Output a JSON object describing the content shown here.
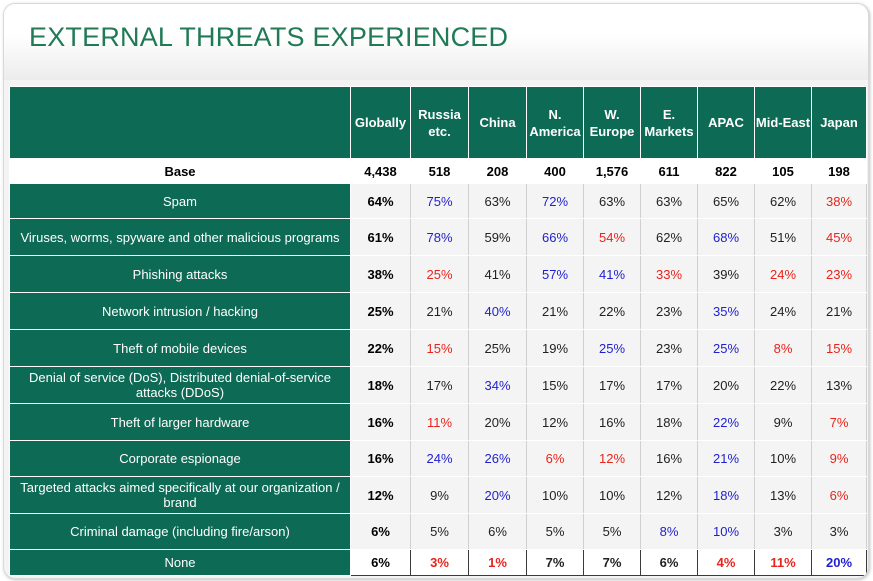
{
  "title": "EXTERNAL THREATS EXPERIENCED",
  "colors": {
    "header_green": "#0d6a54",
    "title_green": "#1f7a55",
    "red": "#e8241c",
    "blue": "#1f1fd1"
  },
  "columns": [
    "Globally",
    "Russia etc.",
    "China",
    "N. America",
    "W. Europe",
    "E. Markets",
    "APAC",
    "Mid-East",
    "Japan"
  ],
  "base": {
    "label": "Base",
    "values": [
      "4,438",
      "518",
      "208",
      "400",
      "1,576",
      "611",
      "822",
      "105",
      "198"
    ]
  },
  "rows": [
    {
      "label": "Spam",
      "values": [
        "64%",
        "75%",
        "63%",
        "72%",
        "63%",
        "63%",
        "65%",
        "62%",
        "38%"
      ],
      "colors": [
        "black",
        "blue",
        "black",
        "blue",
        "black",
        "black",
        "black",
        "black",
        "red"
      ]
    },
    {
      "label": "Viruses, worms, spyware and other malicious programs",
      "values": [
        "61%",
        "78%",
        "59%",
        "66%",
        "54%",
        "62%",
        "68%",
        "51%",
        "45%"
      ],
      "colors": [
        "black",
        "blue",
        "black",
        "blue",
        "red",
        "black",
        "blue",
        "black",
        "red"
      ]
    },
    {
      "label": "Phishing attacks",
      "values": [
        "38%",
        "25%",
        "41%",
        "57%",
        "41%",
        "33%",
        "39%",
        "24%",
        "23%"
      ],
      "colors": [
        "black",
        "red",
        "black",
        "blue",
        "blue",
        "red",
        "black",
        "red",
        "red"
      ]
    },
    {
      "label": "Network intrusion / hacking",
      "values": [
        "25%",
        "21%",
        "40%",
        "21%",
        "22%",
        "23%",
        "35%",
        "24%",
        "21%"
      ],
      "colors": [
        "black",
        "black",
        "blue",
        "black",
        "black",
        "black",
        "blue",
        "black",
        "black"
      ]
    },
    {
      "label": "Theft of mobile devices",
      "values": [
        "22%",
        "15%",
        "25%",
        "19%",
        "25%",
        "23%",
        "25%",
        "8%",
        "15%"
      ],
      "colors": [
        "black",
        "red",
        "black",
        "black",
        "blue",
        "black",
        "blue",
        "red",
        "red"
      ]
    },
    {
      "label": "Denial of service (DoS), Distributed denial-of-service attacks (DDoS)",
      "values": [
        "18%",
        "17%",
        "34%",
        "15%",
        "17%",
        "17%",
        "20%",
        "22%",
        "13%"
      ],
      "colors": [
        "black",
        "black",
        "blue",
        "black",
        "black",
        "black",
        "black",
        "black",
        "black"
      ]
    },
    {
      "label": "Theft of larger hardware",
      "values": [
        "16%",
        "11%",
        "20%",
        "12%",
        "16%",
        "18%",
        "22%",
        "9%",
        "7%"
      ],
      "colors": [
        "black",
        "red",
        "black",
        "black",
        "black",
        "black",
        "blue",
        "black",
        "red"
      ]
    },
    {
      "label": "Corporate espionage",
      "values": [
        "16%",
        "24%",
        "26%",
        "6%",
        "12%",
        "16%",
        "21%",
        "10%",
        "9%"
      ],
      "colors": [
        "black",
        "blue",
        "blue",
        "red",
        "red",
        "black",
        "blue",
        "black",
        "red"
      ]
    },
    {
      "label": "Targeted attacks aimed specifically at our organization / brand",
      "values": [
        "12%",
        "9%",
        "20%",
        "10%",
        "10%",
        "12%",
        "18%",
        "13%",
        "6%"
      ],
      "colors": [
        "black",
        "black",
        "blue",
        "black",
        "black",
        "black",
        "blue",
        "black",
        "red"
      ]
    },
    {
      "label": "Criminal damage (including fire/arson)",
      "values": [
        "6%",
        "5%",
        "6%",
        "5%",
        "5%",
        "8%",
        "10%",
        "3%",
        "3%"
      ],
      "colors": [
        "black",
        "black",
        "black",
        "black",
        "black",
        "blue",
        "blue",
        "black",
        "black"
      ]
    },
    {
      "label": "None",
      "values": [
        "6%",
        "3%",
        "1%",
        "7%",
        "7%",
        "6%",
        "4%",
        "11%",
        "20%"
      ],
      "colors": [
        "black",
        "red",
        "red",
        "black",
        "black",
        "black",
        "red",
        "red",
        "blue"
      ]
    }
  ]
}
